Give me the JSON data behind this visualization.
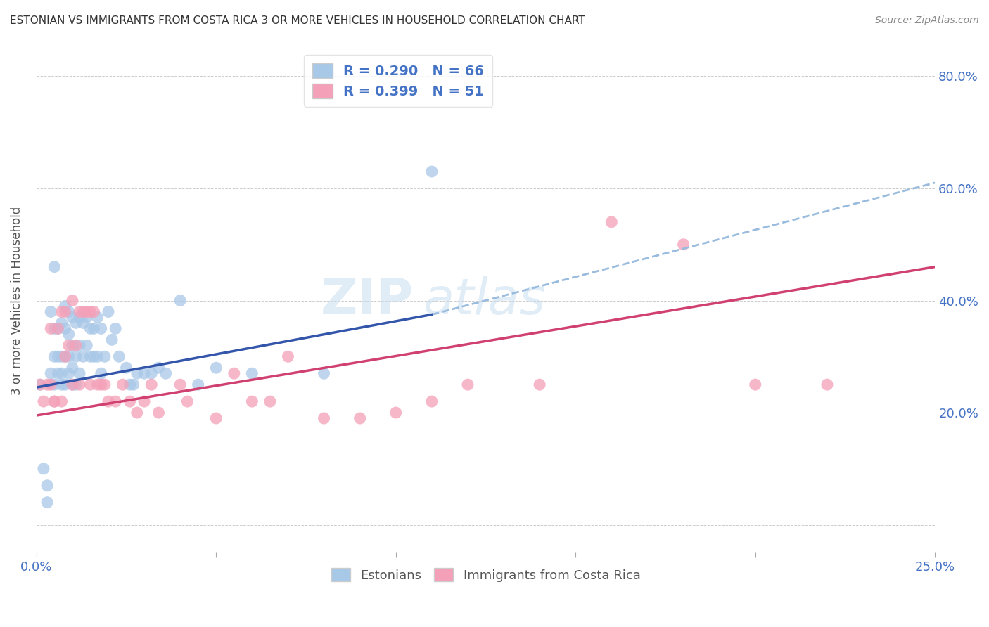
{
  "title": "ESTONIAN VS IMMIGRANTS FROM COSTA RICA 3 OR MORE VEHICLES IN HOUSEHOLD CORRELATION CHART",
  "source": "Source: ZipAtlas.com",
  "ylabel": "3 or more Vehicles in Household",
  "watermark": "ZIPatlas",
  "xlim": [
    0.0,
    0.25
  ],
  "ylim": [
    -0.05,
    0.85
  ],
  "R_blue": 0.29,
  "N_blue": 66,
  "R_pink": 0.399,
  "N_pink": 51,
  "blue_color": "#a8c8e8",
  "pink_color": "#f4a0b8",
  "blue_line_color": "#3355aa",
  "pink_line_color": "#d04070",
  "blue_dashed_color": "#99bbdd",
  "legend_text_color": "#4472c4",
  "grid_color": "#cccccc",
  "background_color": "#ffffff",
  "blue_scatter_x": [
    0.001,
    0.002,
    0.003,
    0.003,
    0.004,
    0.004,
    0.005,
    0.005,
    0.005,
    0.005,
    0.006,
    0.006,
    0.006,
    0.007,
    0.007,
    0.007,
    0.007,
    0.008,
    0.008,
    0.008,
    0.008,
    0.009,
    0.009,
    0.009,
    0.009,
    0.01,
    0.01,
    0.01,
    0.01,
    0.011,
    0.011,
    0.011,
    0.012,
    0.012,
    0.012,
    0.013,
    0.013,
    0.014,
    0.014,
    0.015,
    0.015,
    0.016,
    0.016,
    0.017,
    0.017,
    0.018,
    0.018,
    0.019,
    0.02,
    0.021,
    0.022,
    0.023,
    0.025,
    0.026,
    0.027,
    0.028,
    0.03,
    0.032,
    0.034,
    0.036,
    0.04,
    0.045,
    0.05,
    0.06,
    0.08,
    0.11
  ],
  "blue_scatter_y": [
    0.25,
    0.1,
    0.07,
    0.04,
    0.38,
    0.27,
    0.46,
    0.35,
    0.3,
    0.25,
    0.35,
    0.3,
    0.27,
    0.36,
    0.3,
    0.27,
    0.25,
    0.39,
    0.35,
    0.3,
    0.25,
    0.38,
    0.34,
    0.3,
    0.27,
    0.37,
    0.32,
    0.28,
    0.25,
    0.36,
    0.3,
    0.25,
    0.37,
    0.32,
    0.27,
    0.36,
    0.3,
    0.37,
    0.32,
    0.35,
    0.3,
    0.35,
    0.3,
    0.37,
    0.3,
    0.35,
    0.27,
    0.3,
    0.38,
    0.33,
    0.35,
    0.3,
    0.28,
    0.25,
    0.25,
    0.27,
    0.27,
    0.27,
    0.28,
    0.27,
    0.4,
    0.25,
    0.28,
    0.27,
    0.27,
    0.63
  ],
  "pink_scatter_x": [
    0.001,
    0.002,
    0.003,
    0.004,
    0.004,
    0.005,
    0.005,
    0.006,
    0.007,
    0.007,
    0.008,
    0.008,
    0.009,
    0.01,
    0.01,
    0.011,
    0.012,
    0.012,
    0.013,
    0.014,
    0.015,
    0.015,
    0.016,
    0.017,
    0.018,
    0.019,
    0.02,
    0.022,
    0.024,
    0.026,
    0.028,
    0.03,
    0.032,
    0.034,
    0.04,
    0.042,
    0.05,
    0.055,
    0.06,
    0.065,
    0.07,
    0.08,
    0.09,
    0.1,
    0.11,
    0.12,
    0.14,
    0.16,
    0.18,
    0.2,
    0.22
  ],
  "pink_scatter_y": [
    0.25,
    0.22,
    0.25,
    0.35,
    0.25,
    0.22,
    0.22,
    0.35,
    0.38,
    0.22,
    0.38,
    0.3,
    0.32,
    0.4,
    0.25,
    0.32,
    0.38,
    0.25,
    0.38,
    0.38,
    0.38,
    0.25,
    0.38,
    0.25,
    0.25,
    0.25,
    0.22,
    0.22,
    0.25,
    0.22,
    0.2,
    0.22,
    0.25,
    0.2,
    0.25,
    0.22,
    0.19,
    0.27,
    0.22,
    0.22,
    0.3,
    0.19,
    0.19,
    0.2,
    0.22,
    0.25,
    0.25,
    0.54,
    0.5,
    0.25,
    0.25
  ],
  "blue_solid_line_x": [
    0.0,
    0.11
  ],
  "blue_solid_line_y": [
    0.245,
    0.375
  ],
  "blue_dashed_line_x": [
    0.11,
    0.25
  ],
  "blue_dashed_line_y": [
    0.375,
    0.61
  ],
  "pink_line_x": [
    0.0,
    0.25
  ],
  "pink_line_y": [
    0.195,
    0.46
  ]
}
